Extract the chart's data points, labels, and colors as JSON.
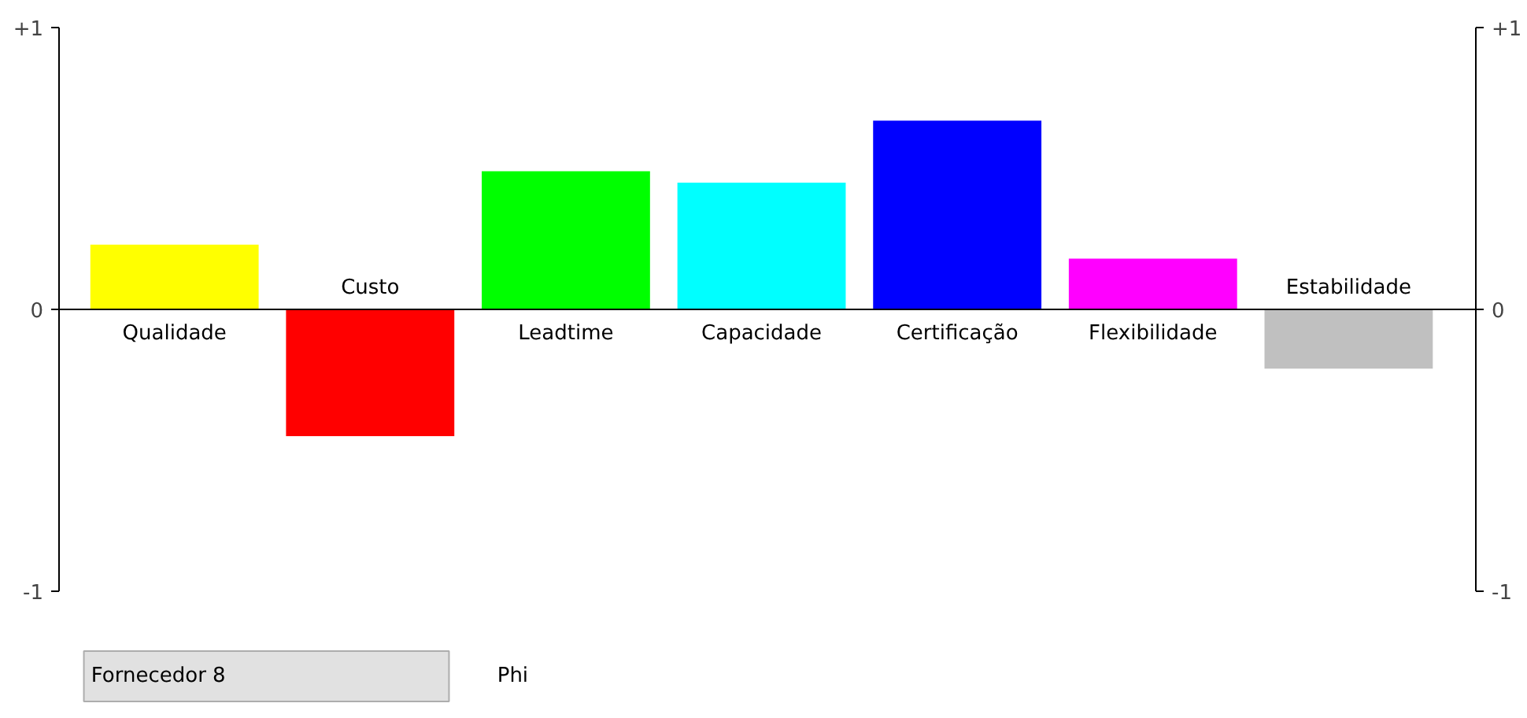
{
  "chart_data": {
    "type": "bar",
    "categories": [
      "Qualidade",
      "Custo",
      "Leadtime",
      "Capacidade",
      "Certificação",
      "Flexibilidade",
      "Estabilidade"
    ],
    "values": [
      0.23,
      -0.45,
      0.49,
      0.45,
      0.67,
      0.18,
      -0.21
    ],
    "colors": [
      "#ffff00",
      "#ff0000",
      "#00ff00",
      "#00ffff",
      "#0000ff",
      "#ff00ff",
      "#c0c0c0"
    ],
    "ylim": [
      -1,
      1
    ],
    "yticks": [
      {
        "value": -1,
        "label": "-1"
      },
      {
        "value": 0,
        "label": "0"
      },
      {
        "value": 1,
        "label": "+1"
      }
    ],
    "y2lim": [
      -1,
      1
    ],
    "y2ticks": [
      {
        "value": -1,
        "label": "-1"
      },
      {
        "value": 0,
        "label": "0"
      },
      {
        "value": 1,
        "label": "+1"
      }
    ],
    "grid": false,
    "annotations": [
      "Fornecedor 8",
      "Phi"
    ]
  }
}
